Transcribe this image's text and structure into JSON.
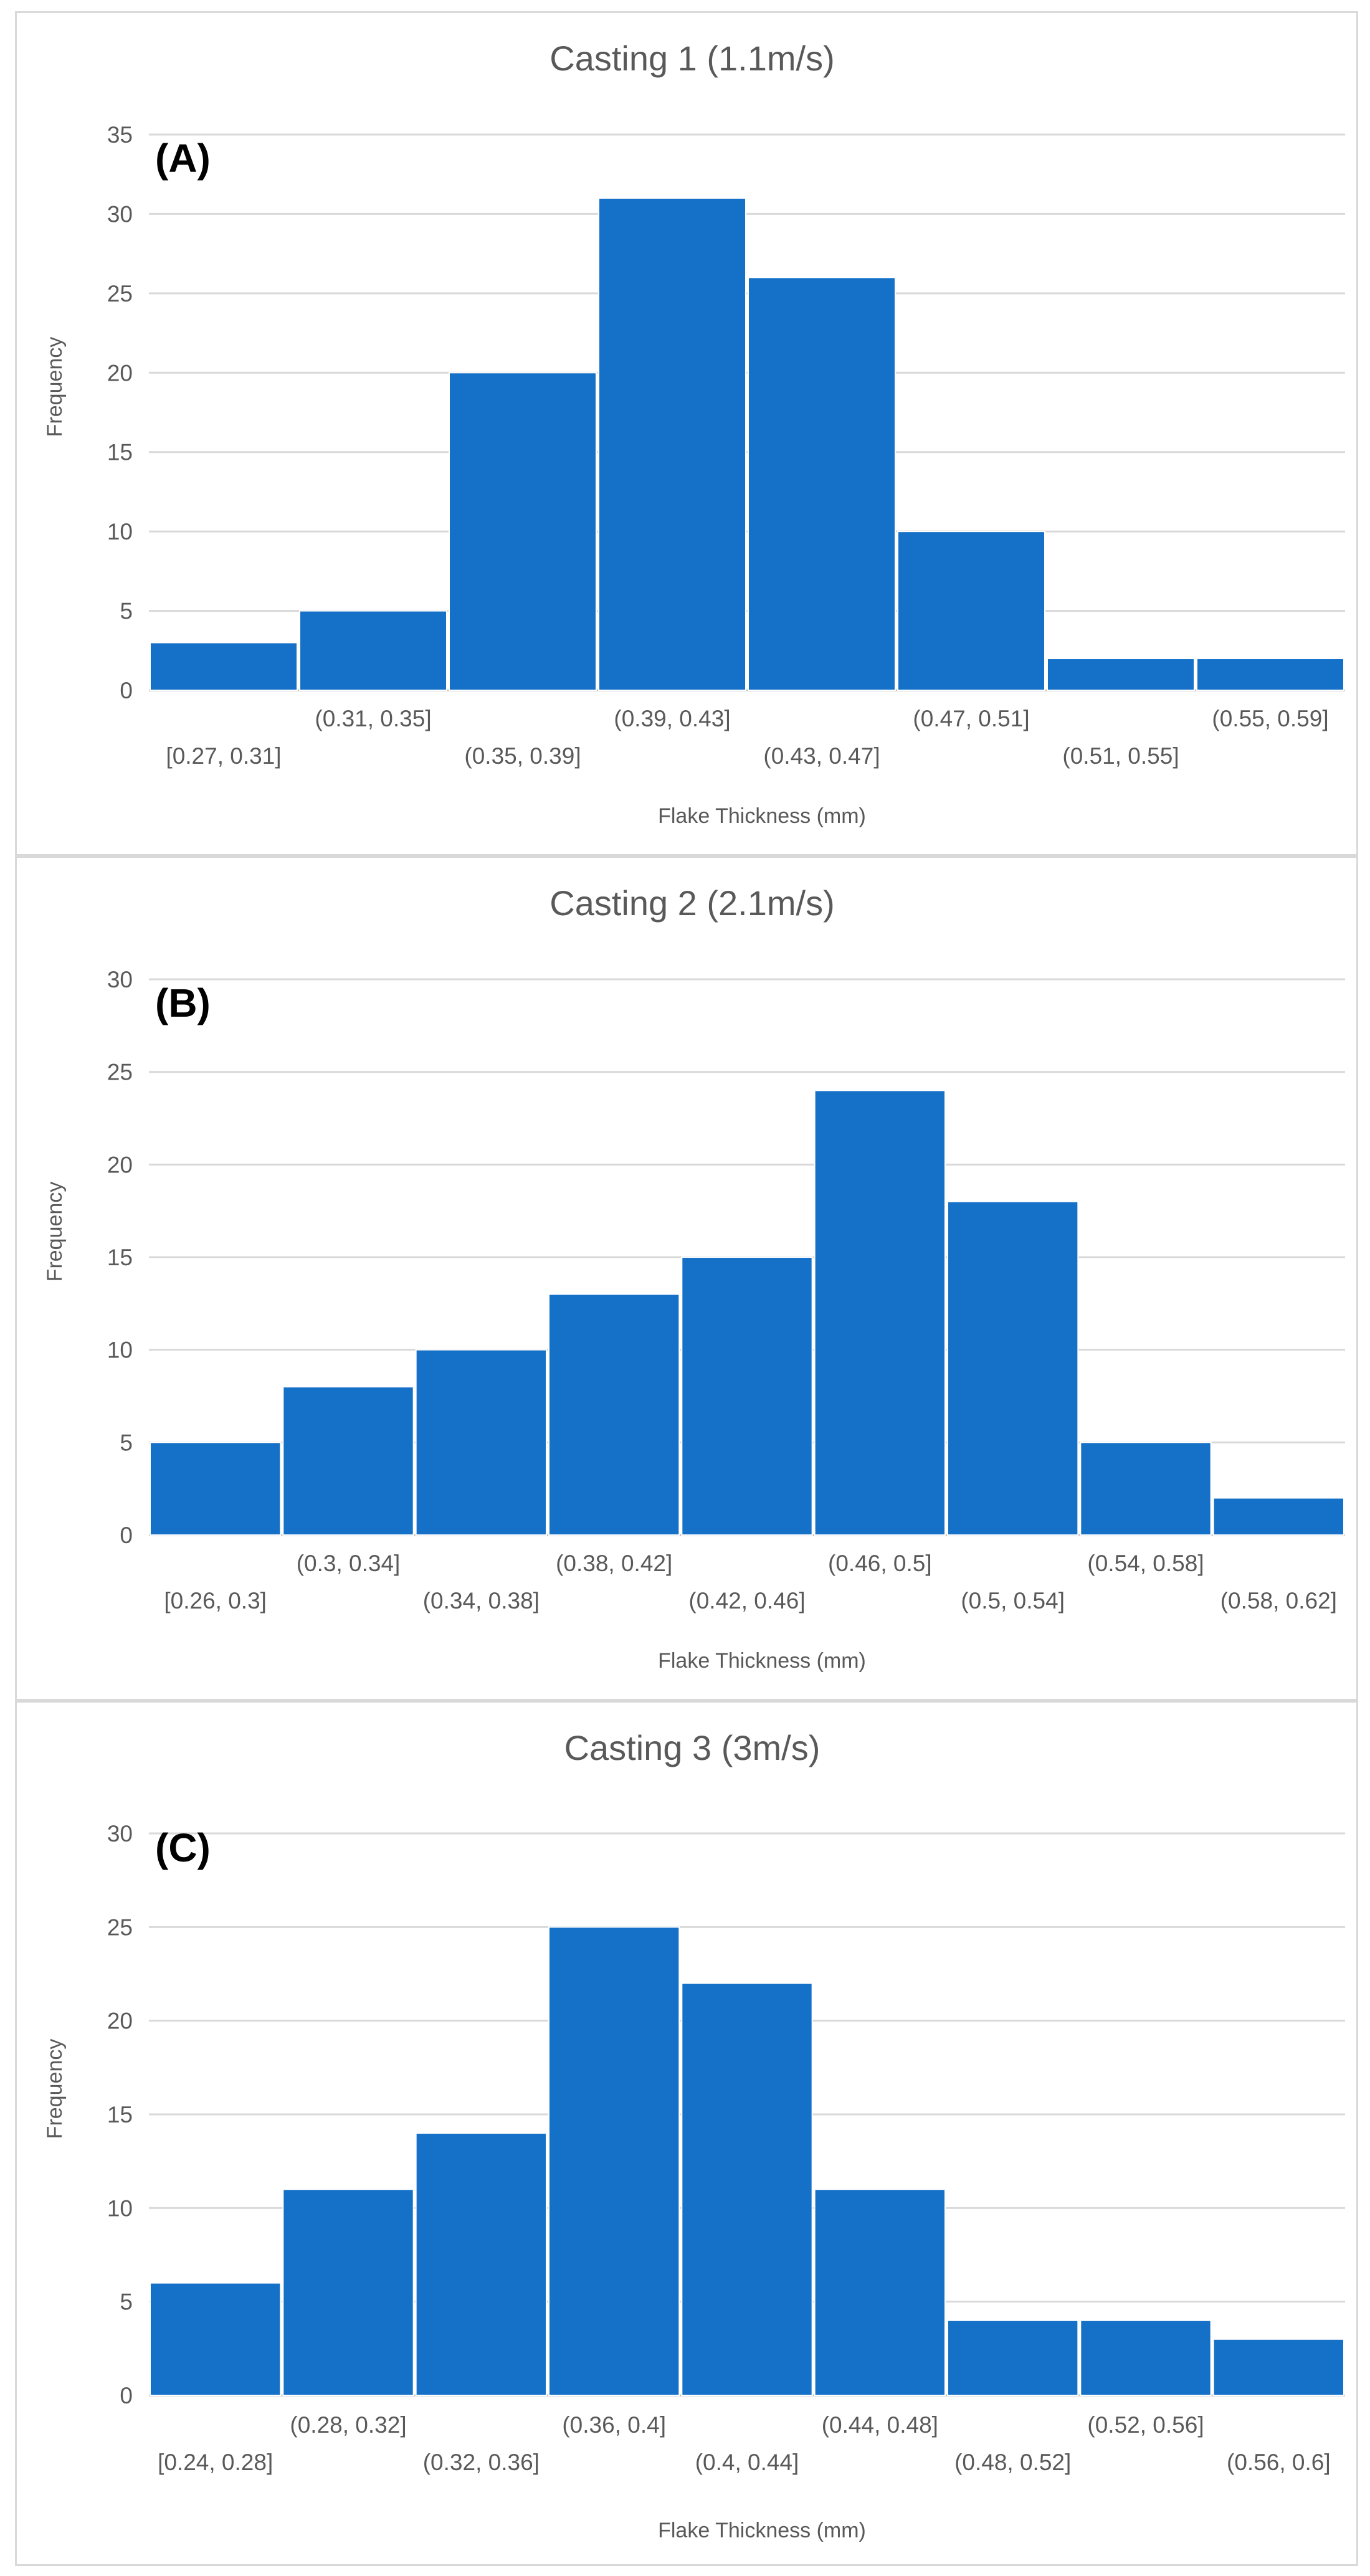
{
  "colors": {
    "bar": "#1570c8",
    "grid": "#d9d9d9",
    "axis": "#bfbfbf",
    "text": "#595959",
    "title": "#595959",
    "letter": "#000000"
  },
  "chart_data": [
    {
      "type": "bar",
      "title": "Casting 1 (1.1m/s)",
      "panel_label": "(A)",
      "xlabel": "Flake Thickness (mm)",
      "ylabel": "Frequency",
      "ylim": [
        0,
        35
      ],
      "yticks": [
        "0",
        "5",
        "10",
        "15",
        "20",
        "25",
        "30",
        "35"
      ],
      "categories": [
        "[0.27, 0.31]",
        "(0.31, 0.35]",
        "(0.35, 0.39]",
        "(0.39, 0.43]",
        "(0.43, 0.47]",
        "(0.47, 0.51]",
        "(0.51, 0.55]",
        "(0.55, 0.59]"
      ],
      "values": [
        3,
        5,
        20,
        31,
        26,
        10,
        2,
        2
      ]
    },
    {
      "type": "bar",
      "title": "Casting 2 (2.1m/s)",
      "panel_label": "(B)",
      "xlabel": "Flake Thickness (mm)",
      "ylabel": "Frequency",
      "ylim": [
        0,
        30
      ],
      "yticks": [
        "0",
        "5",
        "10",
        "15",
        "20",
        "25",
        "30"
      ],
      "categories": [
        "[0.26, 0.3]",
        "(0.3, 0.34]",
        "(0.34, 0.38]",
        "(0.38, 0.42]",
        "(0.42, 0.46]",
        "(0.46, 0.5]",
        "(0.5, 0.54]",
        "(0.54, 0.58]",
        "(0.58, 0.62]"
      ],
      "values": [
        5,
        8,
        10,
        13,
        15,
        24,
        18,
        5,
        2
      ]
    },
    {
      "type": "bar",
      "title": "Casting 3 (3m/s)",
      "panel_label": "(C)",
      "xlabel": "Flake Thickness (mm)",
      "ylabel": "Frequency",
      "ylim": [
        0,
        30
      ],
      "yticks": [
        "0",
        "5",
        "10",
        "15",
        "20",
        "25",
        "30"
      ],
      "categories": [
        "[0.24, 0.28]",
        "(0.28, 0.32]",
        "(0.32, 0.36]",
        "(0.36, 0.4]",
        "(0.4, 0.44]",
        "(0.44, 0.48]",
        "(0.48, 0.52]",
        "(0.52, 0.56]",
        "(0.56, 0.6]"
      ],
      "values": [
        6,
        11,
        14,
        25,
        22,
        11,
        4,
        4,
        3
      ]
    }
  ]
}
